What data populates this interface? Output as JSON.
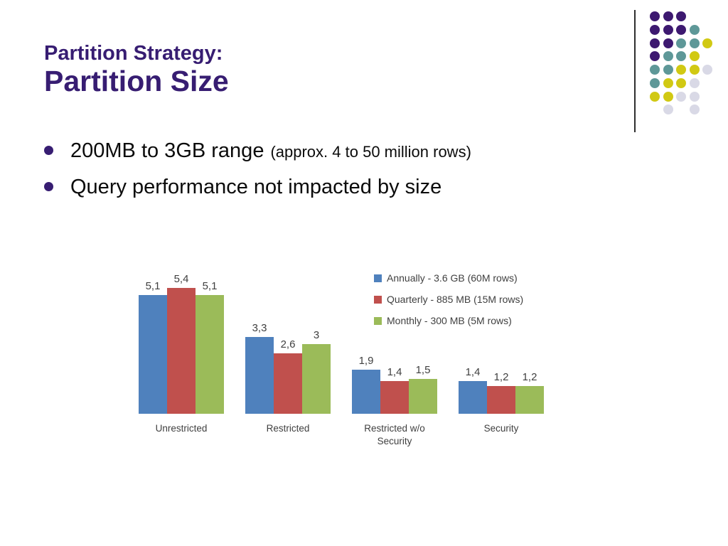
{
  "slide": {
    "title": {
      "line1": "Partition Strategy:",
      "line2": "Partition Size"
    },
    "bullets": [
      {
        "main": "200MB to 3GB range",
        "suffix": "(approx. 4 to 50 million rows)"
      },
      {
        "main": "Query performance not impacted by size",
        "suffix": ""
      }
    ]
  },
  "colors": {
    "title_text": "#371D72",
    "bullet_marker": "#371D72",
    "body_text": "#0b0b0b",
    "chart_text": "#404040"
  },
  "chart_data": {
    "type": "bar",
    "categories": [
      "Unrestricted",
      "Restricted",
      "Restricted w/o\nSecurity",
      "Security"
    ],
    "series": [
      {
        "name": "Annually - 3.6 GB (60M rows)",
        "color": "#4F81BD",
        "values": [
          5.1,
          3.3,
          1.9,
          1.4
        ],
        "labels": [
          "5,1",
          "3,3",
          "1,9",
          "1,4"
        ]
      },
      {
        "name": "Quarterly - 885 MB (15M rows)",
        "color": "#C0504D",
        "values": [
          5.4,
          2.6,
          1.4,
          1.2
        ],
        "labels": [
          "5,4",
          "2,6",
          "1,4",
          "1,2"
        ]
      },
      {
        "name": "Monthly - 300 MB (5M rows)",
        "color": "#9BBB59",
        "values": [
          5.1,
          3.0,
          1.5,
          1.2
        ],
        "labels": [
          "5,1",
          "3",
          "1,5",
          "1,2"
        ]
      }
    ],
    "title": "",
    "xlabel": "",
    "ylabel": "",
    "ylim": [
      0,
      5.4
    ],
    "grid": false,
    "legend_position": "top-right",
    "value_labels": true,
    "value_decimal_separator": ","
  },
  "ornament": {
    "dot_colors": {
      "P": "#3D1970",
      "T": "#5E9898",
      "Y": "#D1C913",
      "L": "#D9D9E6"
    },
    "rows": [
      "PPP..",
      "PPPT.",
      "PPTTY",
      "PTTY.",
      "TTYYL",
      "TYYL.",
      "YYLL.",
      ".L.L."
    ]
  }
}
